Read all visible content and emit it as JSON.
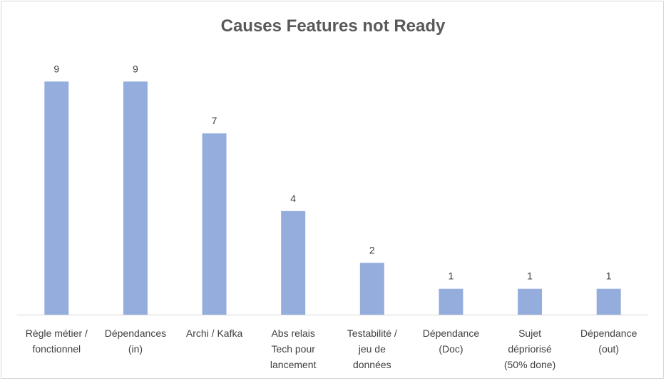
{
  "chart_data": {
    "type": "bar",
    "title": "Causes Features  not Ready",
    "categories": [
      [
        "Règle métier /",
        "fonctionnel"
      ],
      [
        "Dépendances",
        "(in)"
      ],
      [
        "Archi / Kafka"
      ],
      [
        "Abs relais",
        "Tech pour",
        "lancement"
      ],
      [
        "Testabilité /",
        "jeu de",
        "données"
      ],
      [
        "Dépendance",
        "(Doc)"
      ],
      [
        "Sujet",
        "dépriorisé",
        "(50% done)"
      ],
      [
        "Dépendance",
        "(out)"
      ]
    ],
    "values": [
      9,
      9,
      7,
      4,
      2,
      1,
      1,
      1
    ],
    "xlabel": "",
    "ylabel": "",
    "ylim": [
      0,
      10
    ],
    "grid": false,
    "legend": "none",
    "data_labels": true,
    "colors": {
      "bar": "#95ADDD",
      "axis": "#d9d9d9",
      "text": "#404040",
      "title": "#595959"
    }
  }
}
